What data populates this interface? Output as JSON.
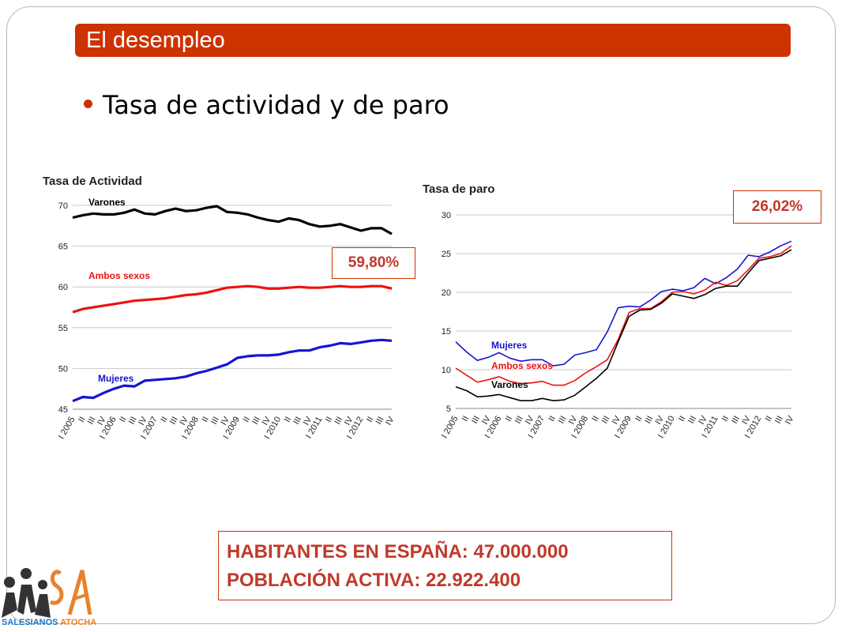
{
  "header": {
    "title": "El desempleo"
  },
  "main": {
    "subtitle": "Tasa de actividad y de paro",
    "callouts": {
      "activity": "59,80%",
      "paro": "26,02%"
    },
    "population": {
      "line1": "HABITANTES EN ESPAÑA: 47.000.000",
      "line2": "POBLACIÓN ACTIVA: 22.922.400"
    }
  },
  "logo": {
    "text_left": "SALESIANOS",
    "text_right": "ATOCHA"
  },
  "colors": {
    "accent": "#cc3300",
    "varones": "#000000",
    "ambos": "#ee1111",
    "mujeres": "#1515d0"
  },
  "chart_data": [
    {
      "type": "line",
      "title": "Tasa de Actividad",
      "x": [
        "I 2005",
        "II",
        "III",
        "IV",
        "I 2006",
        "II",
        "III",
        "IV",
        "I 2007",
        "II",
        "III",
        "IV",
        "I 2008",
        "II",
        "III",
        "IV",
        "I 2009",
        "II",
        "III",
        "IV",
        "I 2010",
        "II",
        "III",
        "IV",
        "I 2011",
        "II",
        "III",
        "IV",
        "I 2012",
        "II",
        "III",
        "IV"
      ],
      "ylim": [
        45,
        70
      ],
      "yticks": [
        45,
        50,
        55,
        60,
        65,
        70
      ],
      "grid": true,
      "series": [
        {
          "name": "Varones",
          "color": "#000000",
          "values": [
            68.5,
            68.8,
            69.0,
            68.9,
            68.9,
            69.1,
            69.5,
            69.0,
            68.9,
            69.3,
            69.6,
            69.3,
            69.4,
            69.7,
            69.9,
            69.2,
            69.1,
            68.9,
            68.5,
            68.2,
            68.0,
            68.4,
            68.2,
            67.7,
            67.4,
            67.5,
            67.7,
            67.3,
            66.9,
            67.2,
            67.2,
            66.5
          ]
        },
        {
          "name": "Ambos sexos",
          "color": "#ee1111",
          "values": [
            56.9,
            57.3,
            57.5,
            57.7,
            57.9,
            58.1,
            58.3,
            58.4,
            58.5,
            58.6,
            58.8,
            59.0,
            59.1,
            59.3,
            59.6,
            59.9,
            60.0,
            60.1,
            60.0,
            59.8,
            59.8,
            59.9,
            60.0,
            59.9,
            59.9,
            60.0,
            60.1,
            60.0,
            60.0,
            60.1,
            60.1,
            59.8
          ]
        },
        {
          "name": "Mujeres",
          "color": "#1515d0",
          "values": [
            46.0,
            46.5,
            46.4,
            47.0,
            47.5,
            47.9,
            47.8,
            48.5,
            48.6,
            48.7,
            48.8,
            49.0,
            49.4,
            49.7,
            50.1,
            50.5,
            51.3,
            51.5,
            51.6,
            51.6,
            51.7,
            52.0,
            52.2,
            52.2,
            52.6,
            52.8,
            53.1,
            53.0,
            53.2,
            53.4,
            53.5,
            53.4
          ]
        }
      ]
    },
    {
      "type": "line",
      "title": "Tasa de paro",
      "x": [
        "I 2005",
        "II",
        "III",
        "IV",
        "I 2006",
        "II",
        "III",
        "IV",
        "I 2007",
        "II",
        "III",
        "IV",
        "I 2008",
        "II",
        "III",
        "IV",
        "I 2009",
        "II",
        "III",
        "IV",
        "I 2010",
        "II",
        "III",
        "IV",
        "I 2011",
        "II",
        "III",
        "IV",
        "I 2012",
        "II",
        "III",
        "IV"
      ],
      "ylim": [
        5,
        30
      ],
      "yticks": [
        5,
        10,
        15,
        20,
        25,
        30
      ],
      "grid": true,
      "series": [
        {
          "name": "Mujeres",
          "color": "#1515d0",
          "values": [
            13.6,
            12.3,
            11.2,
            11.6,
            12.2,
            11.5,
            11.1,
            11.3,
            11.3,
            10.5,
            10.7,
            11.9,
            12.2,
            12.6,
            14.9,
            18.0,
            18.2,
            18.1,
            19.0,
            20.1,
            20.4,
            20.2,
            20.6,
            21.8,
            21.1,
            21.9,
            23.0,
            24.8,
            24.6,
            25.2,
            26.0,
            26.6
          ]
        },
        {
          "name": "Ambos sexos",
          "color": "#ee1111",
          "values": [
            10.2,
            9.3,
            8.4,
            8.7,
            9.1,
            8.5,
            8.2,
            8.3,
            8.5,
            8.0,
            8.0,
            8.6,
            9.6,
            10.4,
            11.3,
            13.9,
            17.4,
            17.9,
            17.9,
            18.8,
            20.0,
            20.1,
            19.8,
            20.3,
            21.3,
            20.9,
            21.5,
            22.9,
            24.4,
            24.6,
            25.0,
            26.0
          ]
        },
        {
          "name": "Varones",
          "color": "#000000",
          "values": [
            7.8,
            7.3,
            6.5,
            6.6,
            6.8,
            6.4,
            6.0,
            6.0,
            6.3,
            6.0,
            6.1,
            6.7,
            7.8,
            8.9,
            10.2,
            13.6,
            16.9,
            17.7,
            17.8,
            18.6,
            19.8,
            19.5,
            19.2,
            19.7,
            20.5,
            20.8,
            20.8,
            22.5,
            24.1,
            24.4,
            24.7,
            25.5
          ]
        }
      ]
    }
  ]
}
